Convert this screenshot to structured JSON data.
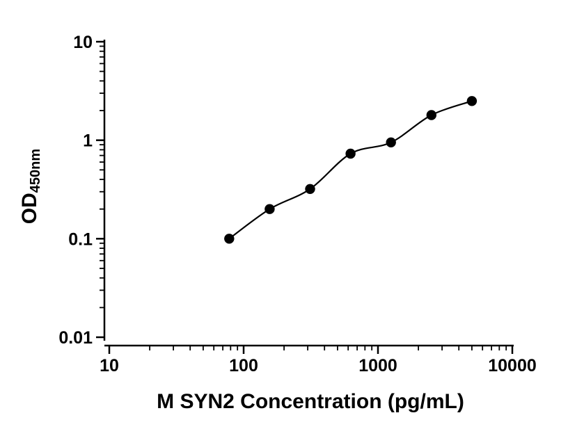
{
  "chart_data": {
    "type": "scatter",
    "title": "",
    "xlabel": "M SYN2 Concentration (pg/mL)",
    "ylabel": "OD450nm",
    "ylabel_main": "OD",
    "ylabel_sub": "450nm",
    "x_scale": "log",
    "y_scale": "log",
    "xlim": [
      10,
      10000
    ],
    "ylim": [
      0.01,
      10
    ],
    "grid": false,
    "legend": "none",
    "x": [
      78.1,
      156.2,
      312.5,
      625,
      1250,
      2500,
      5000
    ],
    "y": [
      0.1,
      0.2,
      0.32,
      0.73,
      0.95,
      1.8,
      2.5
    ],
    "x_ticks": [
      10,
      100,
      1000,
      10000
    ],
    "y_ticks": [
      0.01,
      0.1,
      1,
      10
    ],
    "x_tick_labels": [
      "10",
      "100",
      "1000",
      "10000"
    ],
    "y_tick_labels": [
      "0.01",
      "0.1",
      "1",
      "10"
    ],
    "marker": "filled-circle",
    "marker_color": "#000000",
    "line_color": "#000000",
    "background": "#ffffff"
  }
}
